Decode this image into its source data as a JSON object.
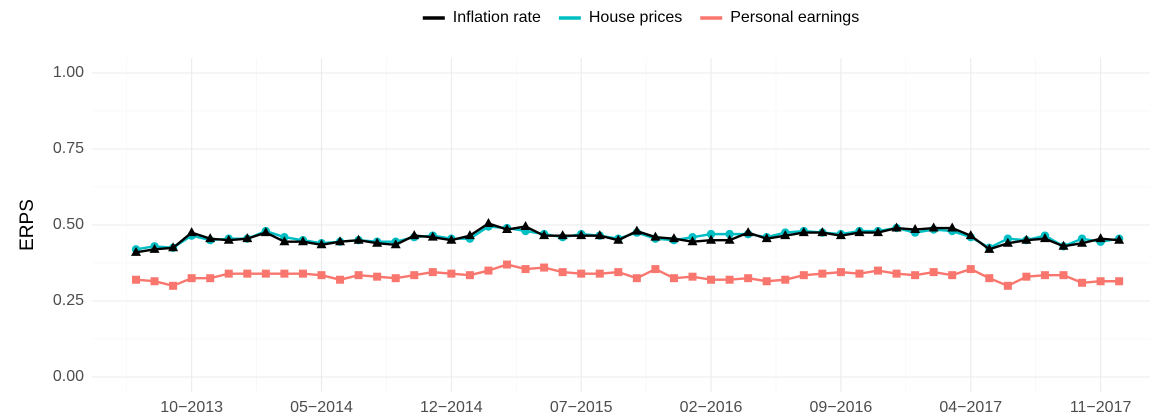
{
  "chart_data": {
    "type": "line",
    "y_label": "ERPS",
    "legend": "top",
    "grid": true,
    "categories": [
      null,
      null,
      null,
      "10−2013",
      null,
      null,
      null,
      null,
      null,
      null,
      "05−2014",
      null,
      null,
      null,
      null,
      null,
      null,
      "12−2014",
      null,
      null,
      null,
      null,
      null,
      null,
      "07−2015",
      null,
      null,
      null,
      null,
      null,
      null,
      "02−2016",
      null,
      null,
      null,
      null,
      null,
      null,
      "09−2016",
      null,
      null,
      null,
      null,
      null,
      null,
      "04−2017",
      null,
      null,
      null,
      null,
      null,
      null,
      "11−2017",
      null
    ],
    "ylim": [
      0,
      1
    ],
    "yticks": [
      {
        "value": 0,
        "label": "0.00"
      },
      0.25,
      {
        "value": 0.5,
        "label": "0.50"
      },
      0.75,
      {
        "value": 1,
        "label": "1.00"
      }
    ],
    "series": [
      {
        "name": "Inflation rate",
        "color": "#000000",
        "marker": "triangle",
        "values": [
          0.41,
          0.42,
          0.425,
          0.475,
          0.455,
          0.45,
          0.455,
          0.475,
          0.445,
          0.445,
          0.435,
          0.445,
          0.45,
          0.44,
          0.435,
          0.465,
          0.46,
          0.45,
          0.465,
          0.505,
          0.485,
          0.495,
          0.465,
          0.465,
          0.465,
          0.465,
          0.45,
          0.48,
          0.46,
          0.455,
          0.445,
          0.45,
          0.45,
          0.475,
          0.455,
          0.465,
          0.475,
          0.475,
          0.465,
          0.475,
          0.475,
          0.49,
          0.485,
          0.49,
          0.49,
          0.465,
          0.42,
          0.44,
          0.45,
          0.455,
          0.43,
          0.44,
          0.455,
          0.45
        ]
      },
      {
        "name": "House prices",
        "color": "#00BFC4",
        "marker": "circle",
        "values": [
          0.42,
          0.43,
          0.425,
          0.465,
          0.45,
          0.455,
          0.455,
          0.48,
          0.46,
          0.45,
          0.44,
          0.445,
          0.45,
          0.445,
          0.445,
          0.46,
          0.465,
          0.455,
          0.455,
          0.495,
          0.49,
          0.48,
          0.47,
          0.46,
          0.47,
          0.465,
          0.455,
          0.475,
          0.455,
          0.45,
          0.46,
          0.47,
          0.47,
          0.47,
          0.46,
          0.475,
          0.48,
          0.475,
          0.47,
          0.48,
          0.48,
          0.49,
          0.475,
          0.485,
          0.48,
          0.46,
          0.425,
          0.455,
          0.45,
          0.465,
          0.43,
          0.455,
          0.445,
          0.455
        ]
      },
      {
        "name": "Personal earnings",
        "color": "#F8766D",
        "marker": "square",
        "values": [
          0.32,
          0.315,
          0.3,
          0.325,
          0.325,
          0.34,
          0.34,
          0.34,
          0.34,
          0.34,
          0.335,
          0.32,
          0.335,
          0.33,
          0.325,
          0.335,
          0.345,
          0.34,
          0.335,
          0.35,
          0.37,
          0.355,
          0.36,
          0.345,
          0.34,
          0.34,
          0.345,
          0.325,
          0.355,
          0.325,
          0.33,
          0.32,
          0.32,
          0.325,
          0.315,
          0.32,
          0.335,
          0.34,
          0.345,
          0.34,
          0.35,
          0.34,
          0.335,
          0.345,
          0.335,
          0.355,
          0.325,
          0.3,
          0.33,
          0.335,
          0.335,
          0.31,
          0.315,
          0.315
        ]
      }
    ]
  }
}
